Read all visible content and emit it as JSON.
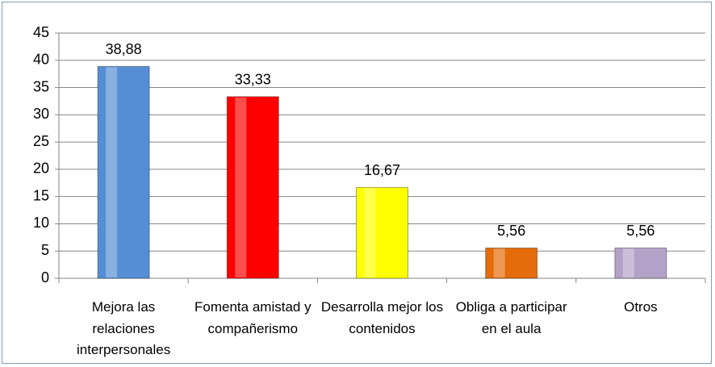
{
  "chart_data": {
    "type": "bar",
    "categories": [
      "Mejora las relaciones interpersonales",
      "Fomenta amistad y compañerismo",
      "Desarrolla mejor los contenidos",
      "Obliga a participar en el aula",
      "Otros"
    ],
    "values": [
      38.88,
      33.33,
      16.67,
      5.56,
      5.56
    ],
    "value_labels": [
      "38,88",
      "33,33",
      "16,67",
      "5,56",
      "5,56"
    ],
    "colors": [
      "#558ed5",
      "#ff0000",
      "#ffff00",
      "#e46c0a",
      "#b3a2c7"
    ],
    "ylim": [
      0,
      45
    ],
    "yticks": [
      0,
      5,
      10,
      15,
      20,
      25,
      30,
      35,
      40,
      45
    ],
    "grid": true
  }
}
